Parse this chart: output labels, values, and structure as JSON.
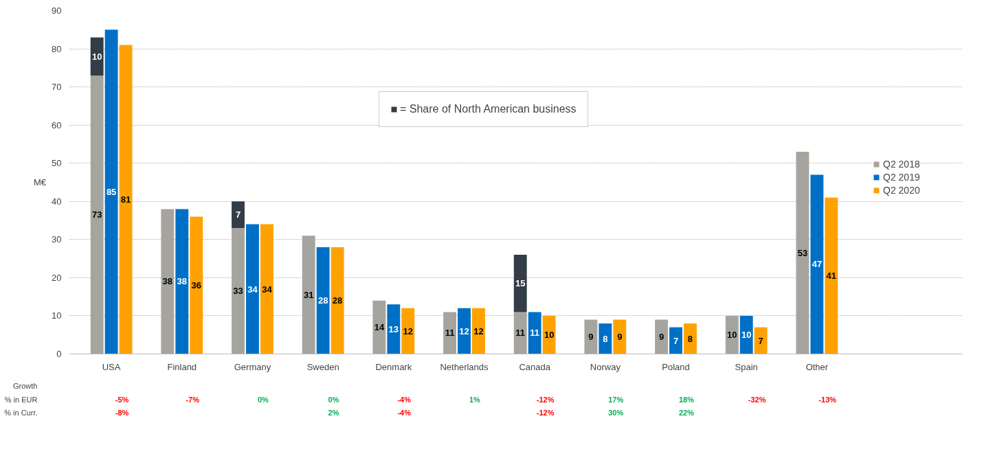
{
  "chart_data": {
    "type": "bar",
    "ylabel": "M€",
    "categories": [
      "USA",
      "Finland",
      "Germany",
      "Sweden",
      "Denmark",
      "Netherlands",
      "Canada",
      "Norway",
      "Poland",
      "Spain",
      "Other"
    ],
    "series": [
      {
        "name": "Q2 2018",
        "color": "#a5a49f",
        "values": [
          73,
          38,
          33,
          31,
          14,
          11,
          11,
          9,
          9,
          10,
          53
        ]
      },
      {
        "name": "= Share of North American business",
        "color": "#333d47",
        "values": [
          10,
          null,
          7,
          null,
          null,
          null,
          15,
          null,
          null,
          null,
          null
        ],
        "base": [
          73,
          null,
          33,
          null,
          null,
          null,
          11,
          null,
          null,
          null,
          null
        ]
      },
      {
        "name": "Q2 2019",
        "color": "#0070c6",
        "values": [
          85,
          38,
          34,
          28,
          13,
          12,
          11,
          8,
          7,
          10,
          47
        ]
      },
      {
        "name": "Q2 2020",
        "color": "#ffa200",
        "values": [
          81,
          36,
          34,
          28,
          12,
          12,
          10,
          9,
          8,
          7,
          41
        ]
      }
    ],
    "ylim": [
      0,
      90
    ],
    "yticks": [
      0,
      10,
      20,
      30,
      40,
      50,
      60,
      70,
      80,
      90
    ],
    "grid": "y",
    "legend": "right",
    "data_labels": true,
    "annotations": [
      "Growth",
      "% in EUR",
      "% in Curr.",
      "-5%",
      "-7%",
      "0%",
      "0%",
      "-4%",
      "1%",
      "-12%",
      "17%",
      "18%",
      "-32%",
      "-13%",
      "-8%",
      null,
      null,
      "2%",
      "-4%",
      null,
      "-12%",
      "30%",
      "22%",
      null,
      null
    ]
  }
}
